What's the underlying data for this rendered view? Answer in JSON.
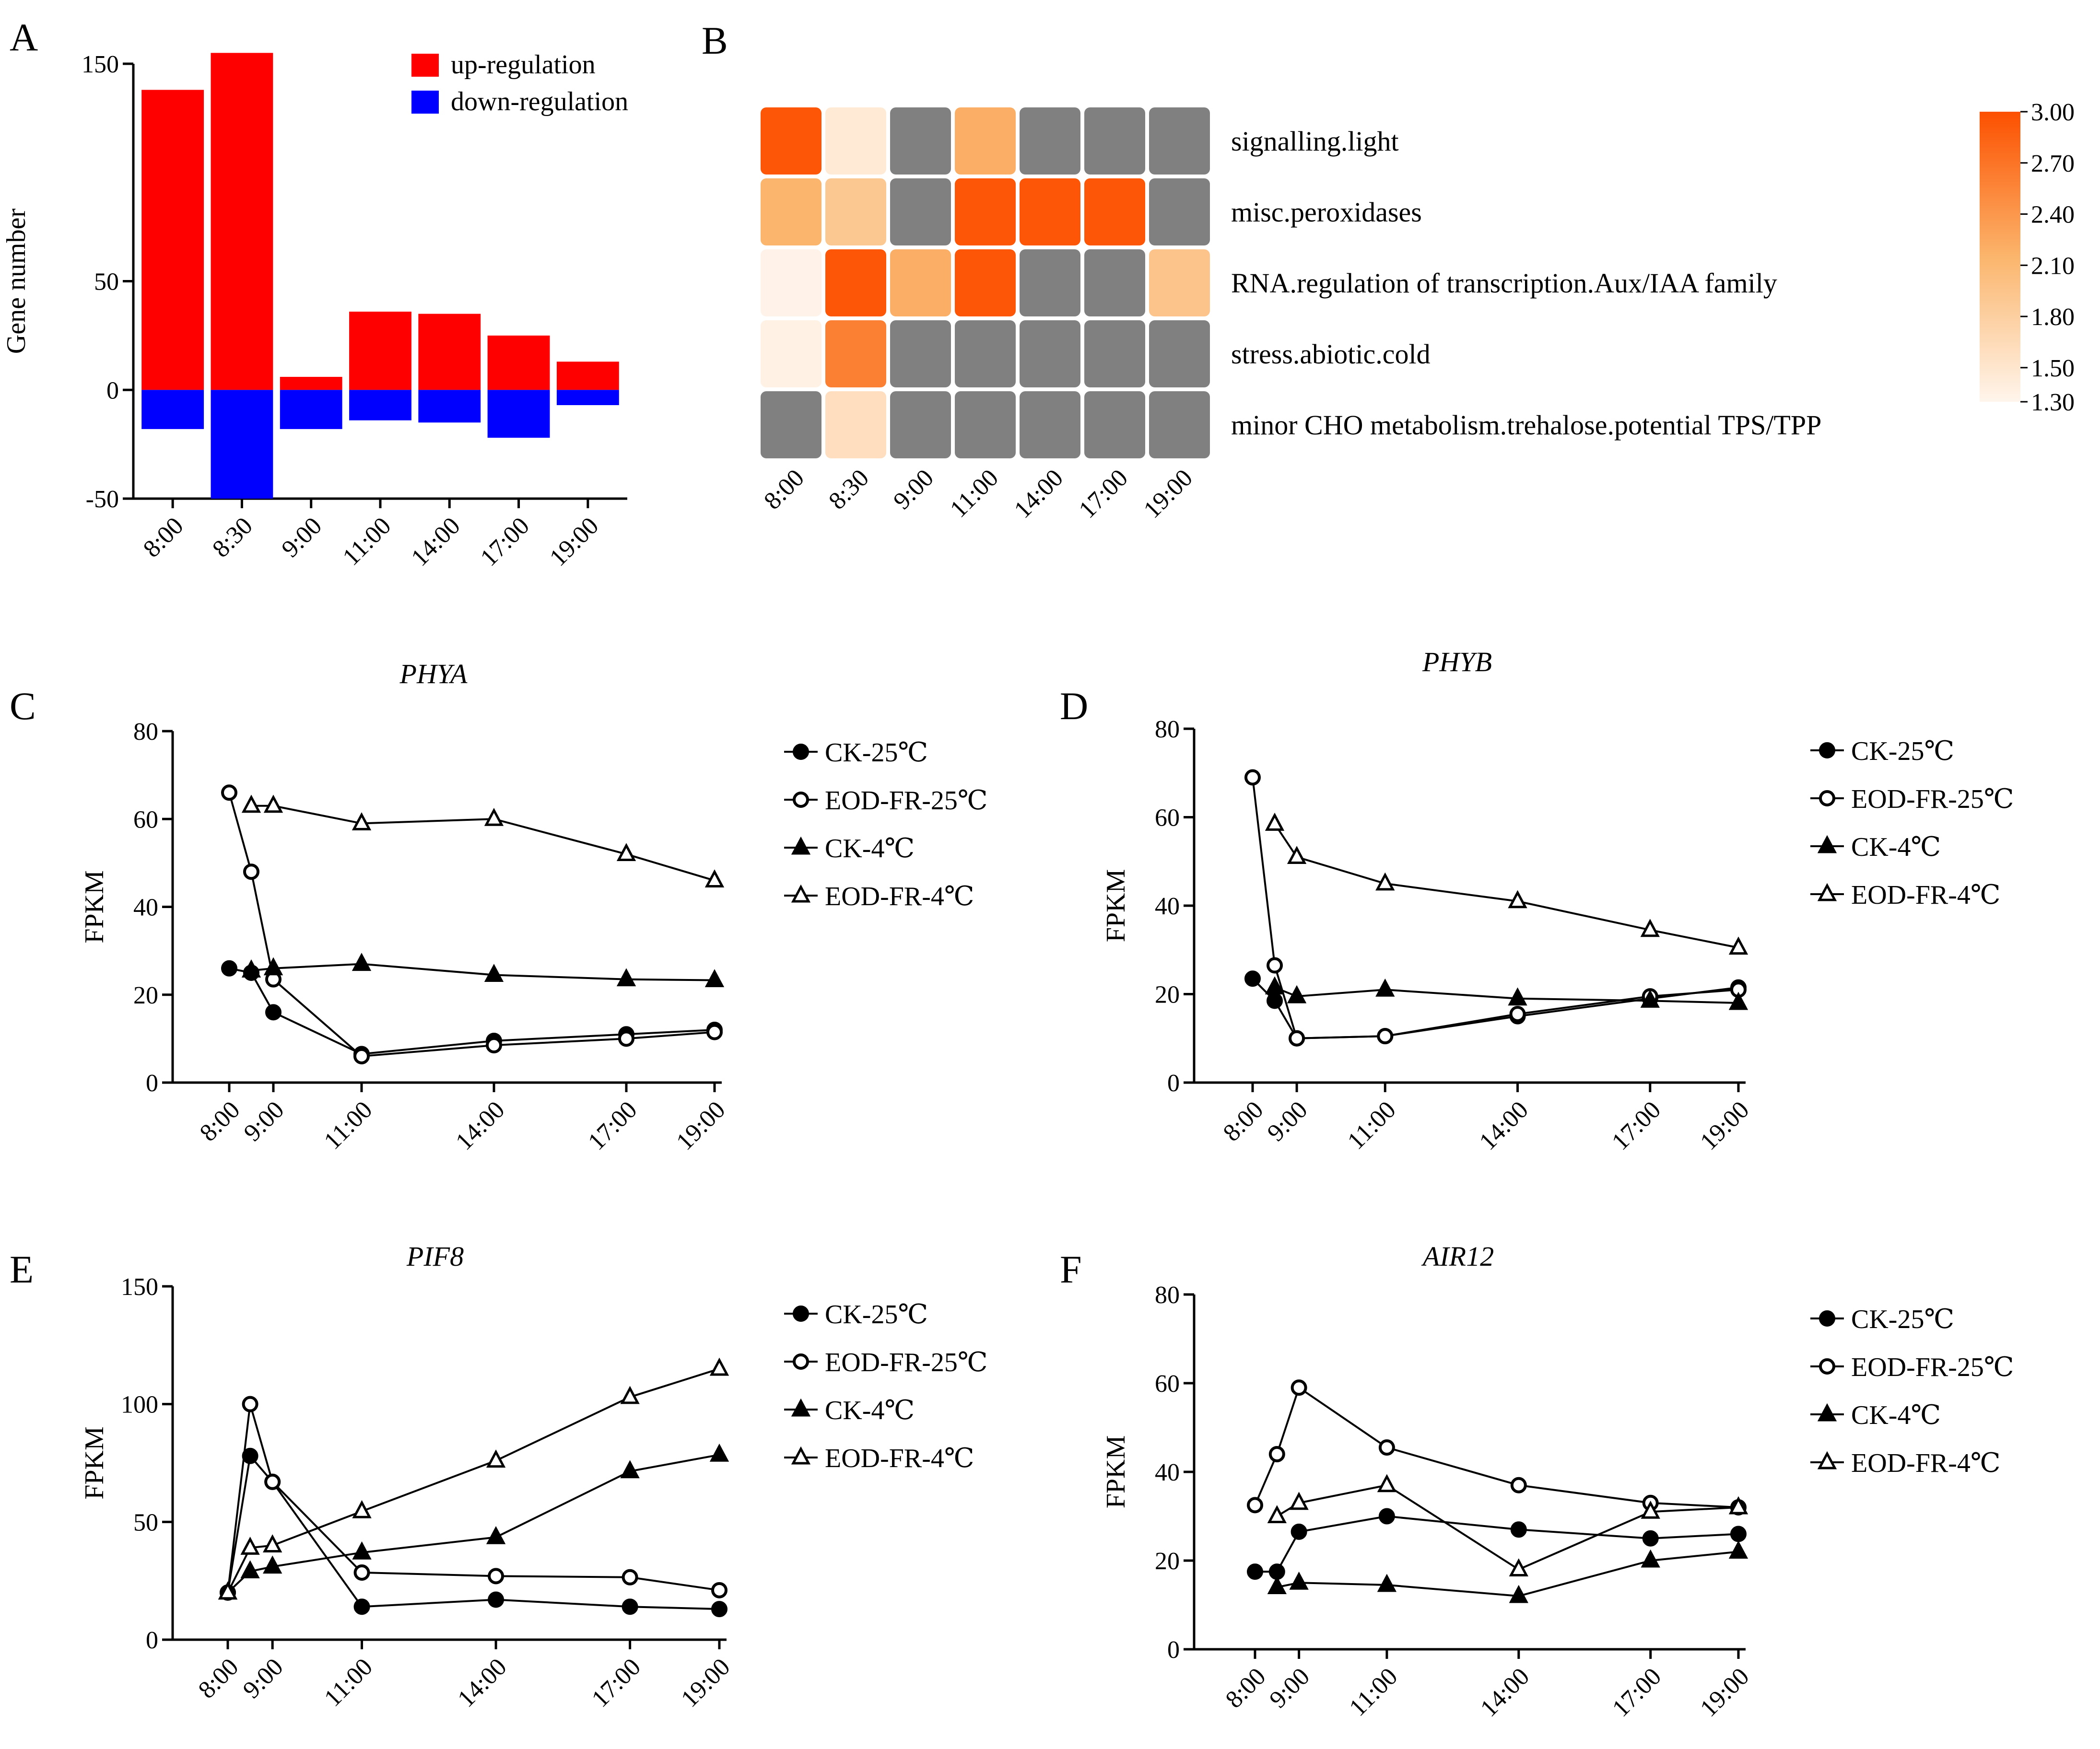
{
  "panel_letters": [
    "A",
    "B",
    "C",
    "D",
    "E",
    "F"
  ],
  "colors": {
    "up": "#ff0000",
    "down": "#0000ff",
    "missing": "#808080",
    "scale_low": "#fff5ec",
    "scale_mid": "#fbb56c",
    "scale_high": "#fc5000"
  },
  "chart_data": [
    {
      "id": "A",
      "type": "bar",
      "title": "",
      "xlabel": "",
      "ylabel": "Gene number",
      "ylim": [
        -50,
        150
      ],
      "yticks": [
        "-50",
        "0",
        "50",
        "150"
      ],
      "categories": [
        "8:00",
        "8:30",
        "9:00",
        "11:00",
        "14:00",
        "17:00",
        "19:00"
      ],
      "series": [
        {
          "name": "up-regulation",
          "color": "#ff0000",
          "values": [
            138,
            155,
            6,
            36,
            35,
            25,
            13
          ]
        },
        {
          "name": "down-regulation",
          "color": "#0000ff",
          "values": [
            -18,
            -50,
            -18,
            -14,
            -15,
            -22,
            -7
          ]
        }
      ]
    },
    {
      "id": "B",
      "type": "heatmap",
      "title": "",
      "columns": [
        "8:00",
        "8:30",
        "9:00",
        "11:00",
        "14:00",
        "17:00",
        "19:00"
      ],
      "rows": [
        "signalling.light",
        "misc.peroxidases",
        "RNA.regulation of transcription.Aux/IAA family",
        "stress.abiotic.cold",
        "minor CHO metabolism.trehalose.potential TPS/TPP"
      ],
      "values": [
        [
          2.95,
          1.45,
          null,
          2.2,
          null,
          null,
          null
        ],
        [
          2.15,
          1.9,
          null,
          2.95,
          2.95,
          2.95,
          null
        ],
        [
          1.32,
          2.95,
          2.2,
          2.95,
          null,
          null,
          1.95
        ],
        [
          1.35,
          2.6,
          null,
          null,
          null,
          null,
          null
        ],
        [
          null,
          1.6,
          null,
          null,
          null,
          null,
          null
        ]
      ],
      "colorbar": {
        "min": 1.3,
        "max": 3.0,
        "ticks": [
          "3.00",
          "2.70",
          "2.40",
          "2.10",
          "1.80",
          "1.50",
          "1.30"
        ]
      }
    },
    {
      "id": "C",
      "type": "line",
      "title": "PHYA",
      "xlabel": "",
      "ylabel": "FPKM",
      "ylim": [
        0,
        80
      ],
      "yticks": [
        "0",
        "20",
        "40",
        "60",
        "80"
      ],
      "xticks": [
        "8:00",
        "9:00",
        "11:00",
        "14:00",
        "17:00",
        "19:00"
      ],
      "series": [
        {
          "name": "CK-25℃",
          "marker": "circle-filled",
          "x": [
            8,
            8.5,
            9,
            11,
            14,
            17,
            19
          ],
          "y": [
            26,
            25,
            16,
            6.5,
            9.5,
            11,
            12
          ]
        },
        {
          "name": "EOD-FR-25℃",
          "marker": "circle-open",
          "x": [
            8,
            8.5,
            9,
            11,
            14,
            17,
            19
          ],
          "y": [
            66,
            48,
            23.5,
            6,
            8.5,
            10,
            11.5
          ]
        },
        {
          "name": "CK-4℃",
          "marker": "triangle-filled",
          "x": [
            8.5,
            9,
            11,
            14,
            17,
            19
          ],
          "y": [
            25.5,
            26,
            27,
            24.5,
            23.5,
            23.3
          ]
        },
        {
          "name": "EOD-FR-4℃",
          "marker": "triangle-open",
          "x": [
            8.5,
            9,
            11,
            14,
            17,
            19
          ],
          "y": [
            63,
            63,
            59,
            60,
            52,
            46
          ]
        }
      ]
    },
    {
      "id": "D",
      "type": "line",
      "title": "PHYB",
      "xlabel": "",
      "ylabel": "FPKM",
      "ylim": [
        0,
        80
      ],
      "yticks": [
        "0",
        "20",
        "40",
        "60",
        "80"
      ],
      "xticks": [
        "8:00",
        "9:00",
        "11:00",
        "14:00",
        "17:00",
        "19:00"
      ],
      "series": [
        {
          "name": "CK-25℃",
          "marker": "circle-filled",
          "x": [
            8,
            8.5,
            9,
            11,
            14,
            17,
            19
          ],
          "y": [
            23.5,
            18.5,
            10,
            10.5,
            15,
            19,
            21.5
          ]
        },
        {
          "name": "EOD-FR-25℃",
          "marker": "circle-open",
          "x": [
            8,
            8.5,
            9,
            11,
            14,
            17,
            19
          ],
          "y": [
            69,
            26.5,
            10,
            10.5,
            15.5,
            19.5,
            21
          ]
        },
        {
          "name": "CK-4℃",
          "marker": "triangle-filled",
          "x": [
            8.5,
            9,
            11,
            14,
            17,
            19
          ],
          "y": [
            21.5,
            19.5,
            21,
            19,
            18.5,
            18
          ]
        },
        {
          "name": "EOD-FR-4℃",
          "marker": "triangle-open",
          "x": [
            8.5,
            9,
            11,
            14,
            17,
            19
          ],
          "y": [
            58.5,
            51,
            45,
            41,
            34.5,
            30.5
          ]
        }
      ]
    },
    {
      "id": "E",
      "type": "line",
      "title": "PIF8",
      "xlabel": "",
      "ylabel": "FPKM",
      "ylim": [
        0,
        150
      ],
      "yticks": [
        "0",
        "50",
        "100",
        "150"
      ],
      "xticks": [
        "8:00",
        "9:00",
        "11:00",
        "14:00",
        "17:00",
        "19:00"
      ],
      "series": [
        {
          "name": "CK-25℃",
          "marker": "circle-filled",
          "x": [
            8,
            8.5,
            9,
            11,
            14,
            17,
            19
          ],
          "y": [
            20,
            78,
            67,
            14,
            17,
            14,
            13
          ]
        },
        {
          "name": "EOD-FR-25℃",
          "marker": "circle-open",
          "x": [
            8,
            8.5,
            9,
            11,
            14,
            17,
            19
          ],
          "y": [
            20,
            100,
            67,
            28.5,
            27,
            26.5,
            21
          ]
        },
        {
          "name": "CK-4℃",
          "marker": "triangle-filled",
          "x": [
            8,
            8.5,
            9,
            11,
            14,
            17,
            19
          ],
          "y": [
            20,
            29,
            31,
            37,
            43.5,
            71.5,
            78.5
          ]
        },
        {
          "name": "EOD-FR-4℃",
          "marker": "triangle-open",
          "x": [
            8,
            8.5,
            9,
            11,
            14,
            17,
            19
          ],
          "y": [
            20,
            39,
            40,
            54.5,
            76,
            103,
            115
          ]
        }
      ]
    },
    {
      "id": "F",
      "type": "line",
      "title": "AIR12",
      "xlabel": "",
      "ylabel": "FPKM",
      "ylim": [
        0,
        80
      ],
      "yticks": [
        "0",
        "20",
        "40",
        "60",
        "80"
      ],
      "xticks": [
        "8:00",
        "9:00",
        "11:00",
        "14:00",
        "17:00",
        "19:00"
      ],
      "series": [
        {
          "name": "CK-25℃",
          "marker": "circle-filled",
          "x": [
            8,
            8.5,
            9,
            11,
            14,
            17,
            19
          ],
          "y": [
            17.5,
            17.5,
            26.5,
            30,
            27,
            25,
            26
          ]
        },
        {
          "name": "EOD-FR-25℃",
          "marker": "circle-open",
          "x": [
            8,
            8.5,
            9,
            11,
            14,
            17,
            19
          ],
          "y": [
            32.5,
            44,
            59,
            45.5,
            37,
            33,
            32
          ]
        },
        {
          "name": "CK-4℃",
          "marker": "triangle-filled",
          "x": [
            8.5,
            9,
            11,
            14,
            17,
            19
          ],
          "y": [
            14,
            15,
            14.5,
            12,
            20,
            22
          ]
        },
        {
          "name": "EOD-FR-4℃",
          "marker": "triangle-open",
          "x": [
            8.5,
            9,
            11,
            14,
            17,
            19
          ],
          "y": [
            30,
            33,
            37,
            18,
            31,
            32
          ]
        }
      ]
    }
  ]
}
